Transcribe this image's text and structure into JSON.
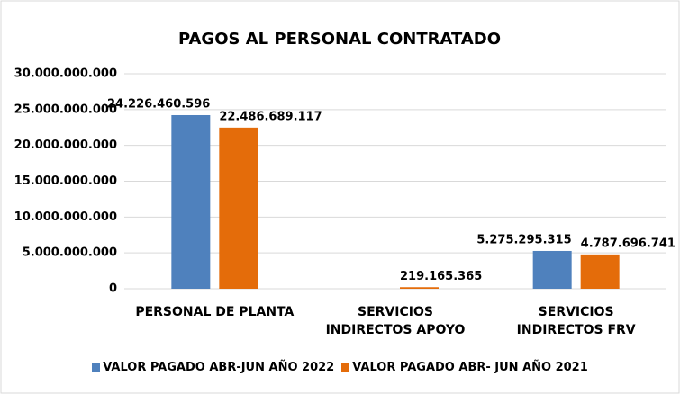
{
  "chart_data": {
    "type": "bar",
    "title": "PAGOS AL PERSONAL CONTRATADO",
    "categories": [
      "PERSONAL DE PLANTA",
      "SERVICIOS\nINDIRECTOS APOYO",
      "SERVICIOS\nINDIRECTOS FRV"
    ],
    "series": [
      {
        "name": "VALOR PAGADO ABR-JUN AÑO 2022",
        "color": "#4f81bd",
        "values": [
          24226460596,
          null,
          5275295315
        ],
        "value_labels": [
          "24.226.460.596",
          null,
          "5.275.295.315"
        ]
      },
      {
        "name": "VALOR PAGADO ABR- JUN AÑO 2021",
        "color": "#e46c0a",
        "values": [
          22486689117,
          219165365,
          4787696741
        ],
        "value_labels": [
          "22.486.689.117",
          "219.165.365",
          "4.787.696.741"
        ]
      }
    ],
    "ylim": [
      0,
      30000000000
    ],
    "yticks": [
      0,
      {
        "value": 5000000000,
        "label": "5.000.000.000"
      },
      {
        "value": 10000000000,
        "label": "10.000.000.000"
      },
      {
        "value": 15000000000,
        "label": "15.000.000.000"
      },
      {
        "value": 20000000000,
        "label": "20.000.000.000"
      },
      {
        "value": 25000000000,
        "label": "25.000.000.000"
      },
      {
        "value": 30000000000,
        "label": "30.000.000.000"
      }
    ],
    "grid": true,
    "legend": "bottom"
  }
}
